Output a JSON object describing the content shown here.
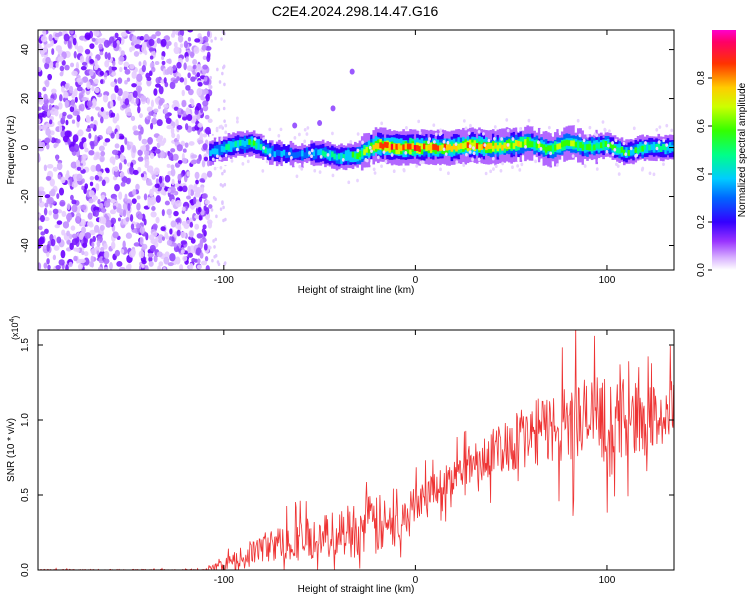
{
  "figure": {
    "title": "C2E4.2024.298.14.47.G16"
  },
  "chart_data": [
    {
      "type": "heatmap",
      "xlabel": "Height of straight line (km)",
      "ylabel": "Frequency (Hz)",
      "xlim": [
        -197,
        135
      ],
      "ylim": [
        -50,
        48
      ],
      "x_ticks": [
        -100,
        0,
        100
      ],
      "y_ticks": [
        -40,
        -20,
        0,
        20,
        40
      ],
      "colorbar": {
        "label": "Normalized spectral amplitude",
        "ticks": [
          "0.0",
          "0.2",
          "0.4",
          "0.6",
          "0.8"
        ],
        "range": [
          0,
          1
        ],
        "colors": [
          "#ffffff",
          "#b266ff",
          "#5500ff",
          "#0000ff",
          "#00c8ff",
          "#00ff80",
          "#33ff00",
          "#ffff00",
          "#ff8000",
          "#ff0000",
          "#ff00aa"
        ]
      },
      "noise_region_x": [
        -197,
        -107
      ],
      "ridge": {
        "description_points_x": [
          -107,
          -95,
          -85,
          -75,
          -60,
          -50,
          -40,
          -30,
          -20,
          -10,
          0,
          10,
          20,
          30,
          40,
          50,
          60,
          70,
          80,
          90,
          100,
          110,
          120,
          130
        ],
        "frequency_hz": [
          -2,
          1,
          2,
          -2,
          -3,
          -2,
          -4,
          -3,
          1,
          0,
          0,
          0,
          0,
          1,
          0,
          1,
          2,
          -1,
          2,
          0,
          1,
          -2,
          0,
          0
        ],
        "peak_amplitude": [
          0.4,
          0.5,
          0.55,
          0.4,
          0.35,
          0.45,
          0.5,
          0.6,
          0.85,
          0.95,
          0.9,
          0.85,
          0.8,
          0.85,
          0.8,
          0.75,
          0.7,
          0.65,
          0.7,
          0.6,
          0.6,
          0.55,
          0.55,
          0.5
        ]
      },
      "drift_blobs": [
        {
          "x": -33,
          "y": 31
        },
        {
          "x": -43,
          "y": 16
        },
        {
          "x": -50,
          "y": 10
        },
        {
          "x": -63,
          "y": 9
        }
      ]
    },
    {
      "type": "line",
      "xlabel": "Height of straight line (km)",
      "ylabel": "SNR (10 * v/v)",
      "y_multiplier": "(x10^4)",
      "xlim": [
        -197,
        135
      ],
      "ylim": [
        0,
        1.6
      ],
      "x_ticks": [
        -100,
        0,
        100
      ],
      "y_ticks": [
        0.0,
        0.5,
        1.0,
        1.5
      ],
      "y_tick_labels": [
        "0.0",
        "0.5",
        "1.0",
        "1.5"
      ],
      "color": "#ee3333",
      "series": [
        {
          "x": [
            -197,
            -110,
            -100,
            -90,
            -80,
            -70,
            -60,
            -50,
            -40,
            -30,
            -20,
            -10,
            0,
            10,
            20,
            30,
            40,
            50,
            60,
            70,
            80,
            90,
            100,
            110,
            120,
            130,
            135
          ],
          "mean": [
            0.0,
            0.0,
            0.03,
            0.08,
            0.15,
            0.18,
            0.2,
            0.22,
            0.25,
            0.28,
            0.3,
            0.28,
            0.45,
            0.55,
            0.62,
            0.72,
            0.78,
            0.85,
            0.9,
            0.95,
            0.97,
            1.0,
            1.0,
            1.02,
            1.0,
            1.02,
            1.05
          ],
          "spread": [
            0.005,
            0.005,
            0.04,
            0.08,
            0.1,
            0.12,
            0.14,
            0.14,
            0.16,
            0.2,
            0.22,
            0.14,
            0.12,
            0.12,
            0.12,
            0.14,
            0.16,
            0.2,
            0.22,
            0.24,
            0.28,
            0.3,
            0.28,
            0.26,
            0.24,
            0.22,
            0.22
          ]
        }
      ]
    }
  ]
}
